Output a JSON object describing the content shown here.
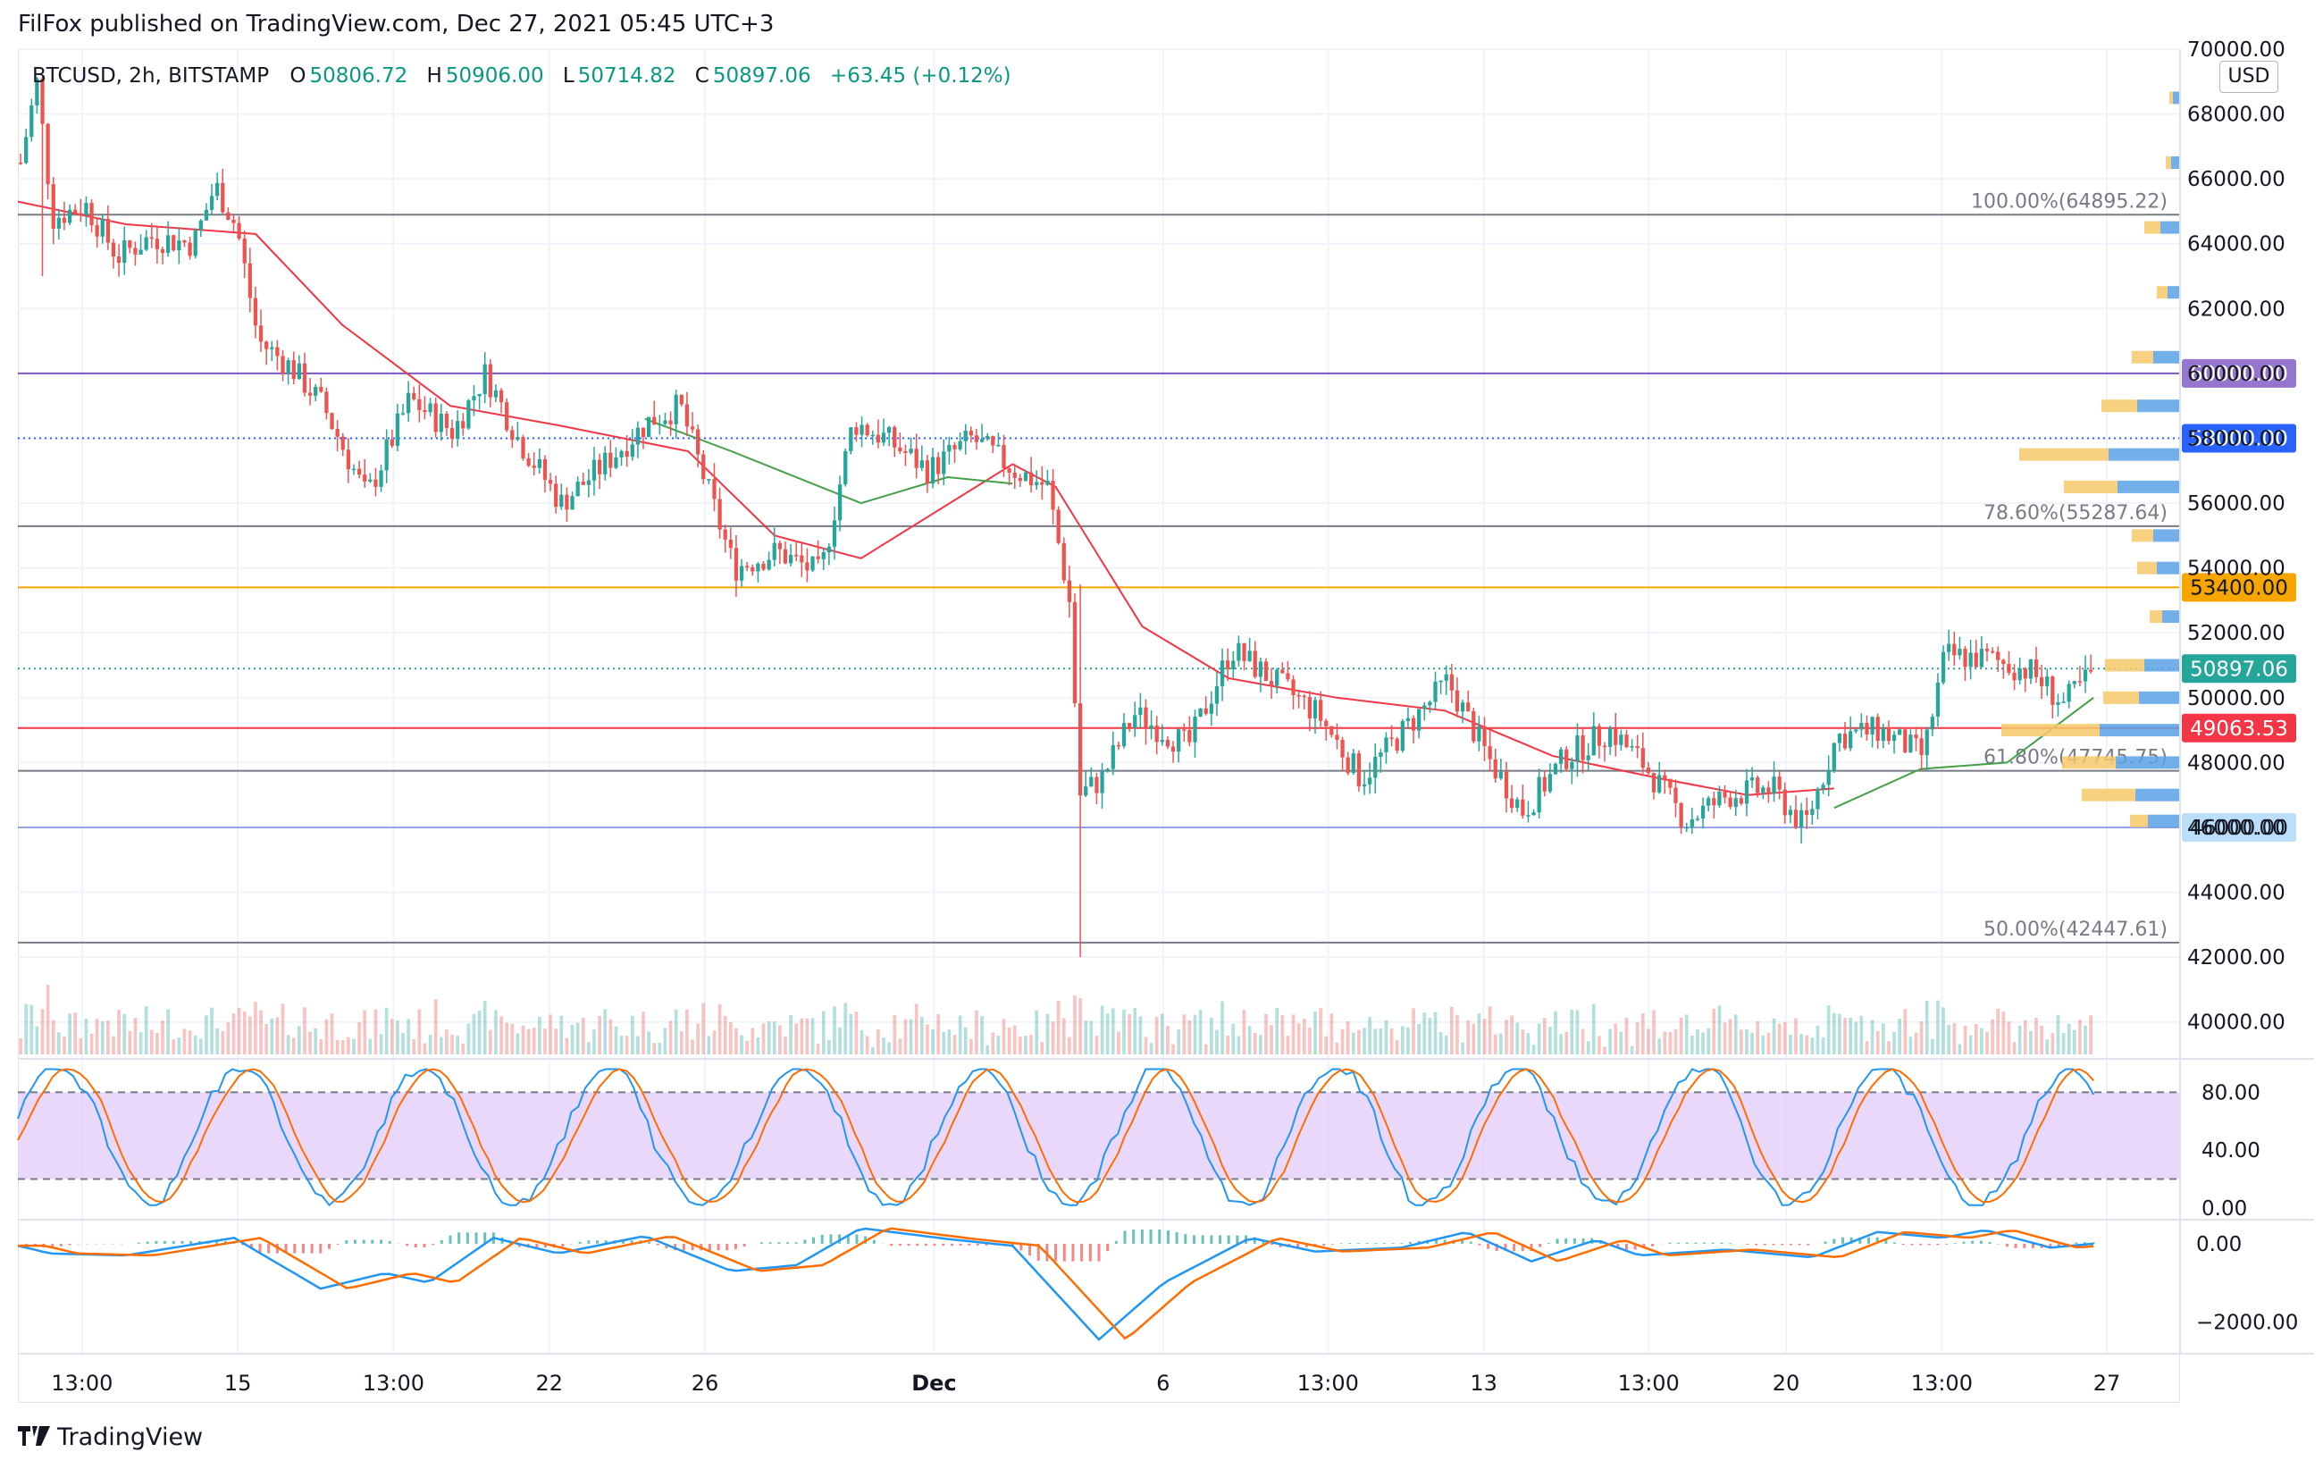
{
  "header": {
    "text": "FilFox published on TradingView.com, Dec 27, 2021 05:45 UTC+3"
  },
  "legend": {
    "symbol": "BTCUSD, 2h, BITSTAMP",
    "open_label": "O",
    "open": "50806.72",
    "high_label": "H",
    "high": "50906.00",
    "low_label": "L",
    "low": "50714.82",
    "close_label": "C",
    "close": "50897.06",
    "change": "+63.45 (+0.12%)"
  },
  "currency_button": "USD",
  "footer": {
    "brand": "TradingView",
    "logo_icon": "tradingview-logo-icon"
  },
  "colors": {
    "up": "#26a69a",
    "down": "#ef5350",
    "ema_fast": "#f23645",
    "ema_slow": "#43a047",
    "fib_line": "#787b86",
    "level_purple": "#7e57c2",
    "level_blue": "#2962ff",
    "level_orange": "#f7a600",
    "level_red": "#f23645",
    "level_lightblue": "#90a4e8",
    "stoch_band": "#e1c8fa",
    "stoch_k": "#2196f3",
    "stoch_d": "#ff6d00",
    "macd": "#2196f3",
    "signal": "#ff6d00",
    "vp_up": "#5aa2e6",
    "vp_down": "#f7c96a"
  },
  "chart_data": {
    "type": "candlestick",
    "symbol": "BTCUSD",
    "interval": "2h",
    "exchange": "BITSTAMP",
    "y_axis": {
      "min": 39000,
      "max": 70000,
      "currency": "USD",
      "ticks": [
        "70000.00",
        "68000.00",
        "66000.00",
        "64000.00",
        "62000.00",
        "60000.00",
        "58000.00",
        "56000.00",
        "54000.00",
        "52000.00",
        "50000.00",
        "48000.00",
        "46000.00",
        "44000.00",
        "42000.00",
        "40000.00"
      ]
    },
    "x_axis": {
      "ticks": [
        "13:00",
        "15",
        "13:00",
        "22",
        "26",
        "Dec",
        "6",
        "13:00",
        "13",
        "13:00",
        "20",
        "13:00",
        "27"
      ]
    },
    "price_path": [
      {
        "x": 0,
        "y": 66500
      },
      {
        "x": 1.5,
        "y": 69000
      },
      {
        "x": 3,
        "y": 64800
      },
      {
        "x": 6,
        "y": 65200
      },
      {
        "x": 9,
        "y": 63600
      },
      {
        "x": 12,
        "y": 64200
      },
      {
        "x": 16,
        "y": 64000
      },
      {
        "x": 18,
        "y": 65800
      },
      {
        "x": 20,
        "y": 64500
      },
      {
        "x": 22,
        "y": 61000
      },
      {
        "x": 25,
        "y": 60200
      },
      {
        "x": 28,
        "y": 59000
      },
      {
        "x": 32,
        "y": 56200
      },
      {
        "x": 36,
        "y": 59200
      },
      {
        "x": 40,
        "y": 58200
      },
      {
        "x": 43,
        "y": 60000
      },
      {
        "x": 46,
        "y": 58000
      },
      {
        "x": 50,
        "y": 56000
      },
      {
        "x": 54,
        "y": 57200
      },
      {
        "x": 58,
        "y": 58500
      },
      {
        "x": 61,
        "y": 59000
      },
      {
        "x": 63,
        "y": 57000
      },
      {
        "x": 66,
        "y": 54000
      },
      {
        "x": 70,
        "y": 54500
      },
      {
        "x": 74,
        "y": 53800
      },
      {
        "x": 77,
        "y": 58500
      },
      {
        "x": 80,
        "y": 58000
      },
      {
        "x": 84,
        "y": 57000
      },
      {
        "x": 88,
        "y": 58000
      },
      {
        "x": 92,
        "y": 57000
      },
      {
        "x": 95,
        "y": 56500
      },
      {
        "x": 97,
        "y": 53000
      },
      {
        "x": 98,
        "y": 47000
      },
      {
        "x": 100,
        "y": 47500
      },
      {
        "x": 103,
        "y": 49500
      },
      {
        "x": 108,
        "y": 48500
      },
      {
        "x": 112,
        "y": 51500
      },
      {
        "x": 116,
        "y": 50500
      },
      {
        "x": 120,
        "y": 49500
      },
      {
        "x": 124,
        "y": 47500
      },
      {
        "x": 128,
        "y": 49000
      },
      {
        "x": 132,
        "y": 50500
      },
      {
        "x": 136,
        "y": 48000
      },
      {
        "x": 139,
        "y": 46500
      },
      {
        "x": 143,
        "y": 48200
      },
      {
        "x": 147,
        "y": 49000
      },
      {
        "x": 150,
        "y": 48000
      },
      {
        "x": 154,
        "y": 46200
      },
      {
        "x": 158,
        "y": 47000
      },
      {
        "x": 162,
        "y": 47200
      },
      {
        "x": 165,
        "y": 46000
      },
      {
        "x": 168,
        "y": 48800
      },
      {
        "x": 172,
        "y": 49000
      },
      {
        "x": 176,
        "y": 48200
      },
      {
        "x": 178,
        "y": 51300
      },
      {
        "x": 182,
        "y": 51200
      },
      {
        "x": 186,
        "y": 50800
      },
      {
        "x": 189,
        "y": 49800
      },
      {
        "x": 192,
        "y": 50900
      }
    ],
    "wick_extremes": [
      {
        "x": 2,
        "high": 69000,
        "low": 63000
      },
      {
        "x": 98,
        "high": 53500,
        "low": 42000
      }
    ],
    "ema_fast": [
      {
        "x": 0,
        "y": 65300
      },
      {
        "x": 10,
        "y": 64600
      },
      {
        "x": 22,
        "y": 64300
      },
      {
        "x": 30,
        "y": 61500
      },
      {
        "x": 40,
        "y": 59000
      },
      {
        "x": 50,
        "y": 58400
      },
      {
        "x": 62,
        "y": 57600
      },
      {
        "x": 70,
        "y": 55000
      },
      {
        "x": 78,
        "y": 54300
      },
      {
        "x": 92,
        "y": 57200
      },
      {
        "x": 96,
        "y": 56500
      },
      {
        "x": 104,
        "y": 52200
      },
      {
        "x": 112,
        "y": 50600
      },
      {
        "x": 122,
        "y": 50000
      },
      {
        "x": 132,
        "y": 49600
      },
      {
        "x": 142,
        "y": 48200
      },
      {
        "x": 152,
        "y": 47500
      },
      {
        "x": 160,
        "y": 47000
      },
      {
        "x": 168,
        "y": 47200
      }
    ],
    "ema_slow": [
      {
        "x": 58,
        "y": 58600
      },
      {
        "x": 66,
        "y": 57600
      },
      {
        "x": 78,
        "y": 56000
      },
      {
        "x": 86,
        "y": 56800
      },
      {
        "x": 92,
        "y": 56600
      },
      {
        "x": 168,
        "y": 46600
      },
      {
        "x": 176,
        "y": 47800
      },
      {
        "x": 184,
        "y": 48000
      },
      {
        "x": 192,
        "y": 50000
      }
    ],
    "horizontal_levels": [
      {
        "price": 64895.22,
        "label": "100.00%(64895.22)",
        "kind": "fib"
      },
      {
        "price": 60000.0,
        "label": "60000.00",
        "kind": "purple"
      },
      {
        "price": 58000.0,
        "label": "58000.00",
        "kind": "blue",
        "dotted": true
      },
      {
        "price": 55287.64,
        "label": "78.60%(55287.64)",
        "kind": "fib"
      },
      {
        "price": 53400.0,
        "label": "53400.00",
        "kind": "orange"
      },
      {
        "price": 50897.06,
        "label": "50897.06",
        "kind": "last",
        "dotted": true
      },
      {
        "price": 49063.53,
        "label": "49063.53",
        "kind": "red"
      },
      {
        "price": 47745.75,
        "label": "61.80%(47745.75)",
        "kind": "fib"
      },
      {
        "price": 46000.0,
        "label": "46000.00",
        "kind": "lightblue"
      },
      {
        "price": 42447.61,
        "label": "50.00%(42447.61)",
        "kind": "fib"
      }
    ],
    "volume_profile": [
      {
        "price": 68500,
        "up": 8,
        "down": 4
      },
      {
        "price": 66500,
        "up": 10,
        "down": 6
      },
      {
        "price": 64500,
        "up": 22,
        "down": 18
      },
      {
        "price": 62500,
        "up": 14,
        "down": 12
      },
      {
        "price": 60500,
        "up": 30,
        "down": 24
      },
      {
        "price": 59000,
        "up": 48,
        "down": 40
      },
      {
        "price": 57500,
        "up": 80,
        "down": 100
      },
      {
        "price": 56500,
        "up": 70,
        "down": 60
      },
      {
        "price": 55000,
        "up": 30,
        "down": 24
      },
      {
        "price": 54000,
        "up": 26,
        "down": 22
      },
      {
        "price": 52500,
        "up": 20,
        "down": 14
      },
      {
        "price": 51000,
        "up": 40,
        "down": 44
      },
      {
        "price": 50000,
        "up": 46,
        "down": 40
      },
      {
        "price": 49000,
        "up": 90,
        "down": 110
      },
      {
        "price": 48000,
        "up": 72,
        "down": 60
      },
      {
        "price": 47000,
        "up": 50,
        "down": 60
      },
      {
        "price": 46200,
        "up": 36,
        "down": 20
      }
    ],
    "stochastic": {
      "y_ticks": [
        "80.00",
        "40.00",
        "0.00"
      ],
      "band": [
        20,
        80
      ],
      "range": [
        -5,
        100
      ]
    },
    "macd": {
      "y_ticks": [
        "0.00",
        "−2000.00"
      ],
      "range": [
        -2700,
        500
      ],
      "macd_path": [
        {
          "x": 0,
          "y": -50
        },
        {
          "x": 3,
          "y": -250
        },
        {
          "x": 10,
          "y": -300
        },
        {
          "x": 20,
          "y": 150
        },
        {
          "x": 28,
          "y": -1150
        },
        {
          "x": 34,
          "y": -750
        },
        {
          "x": 38,
          "y": -1000
        },
        {
          "x": 44,
          "y": 150
        },
        {
          "x": 50,
          "y": -250
        },
        {
          "x": 58,
          "y": 200
        },
        {
          "x": 66,
          "y": -700
        },
        {
          "x": 72,
          "y": -550
        },
        {
          "x": 78,
          "y": 400
        },
        {
          "x": 86,
          "y": 120
        },
        {
          "x": 92,
          "y": -50
        },
        {
          "x": 100,
          "y": -2450
        },
        {
          "x": 106,
          "y": -1000
        },
        {
          "x": 114,
          "y": 150
        },
        {
          "x": 120,
          "y": -200
        },
        {
          "x": 128,
          "y": -100
        },
        {
          "x": 134,
          "y": 300
        },
        {
          "x": 140,
          "y": -450
        },
        {
          "x": 146,
          "y": 100
        },
        {
          "x": 150,
          "y": -300
        },
        {
          "x": 158,
          "y": -150
        },
        {
          "x": 166,
          "y": -350
        },
        {
          "x": 172,
          "y": 300
        },
        {
          "x": 178,
          "y": 150
        },
        {
          "x": 182,
          "y": 350
        },
        {
          "x": 188,
          "y": -100
        },
        {
          "x": 192,
          "y": 0
        }
      ]
    }
  }
}
